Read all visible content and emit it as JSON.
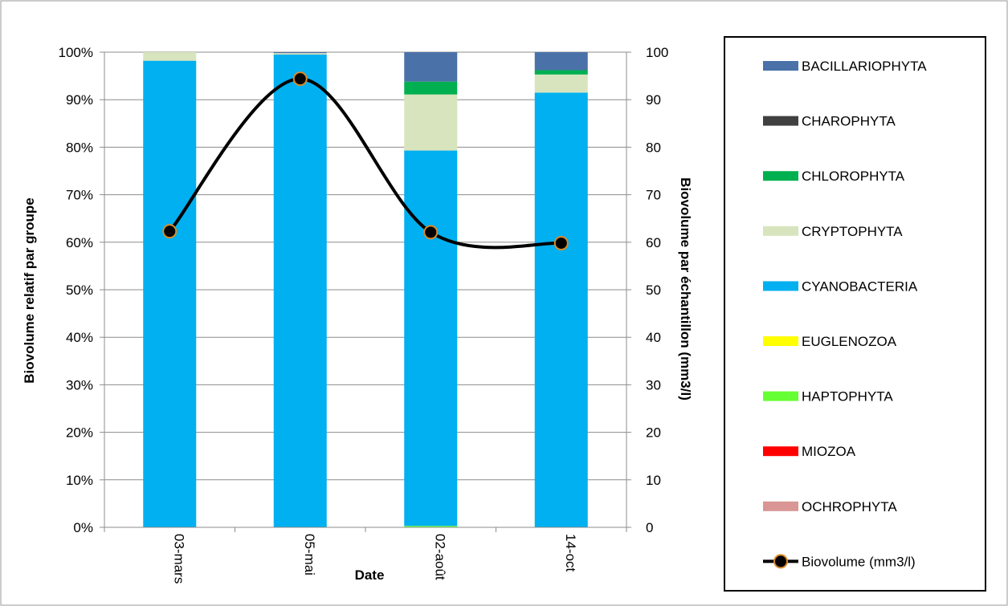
{
  "chart_data": {
    "type": "bar",
    "stacked": true,
    "categories": [
      "03-mars",
      "05-mai",
      "02-août",
      "14-oct"
    ],
    "xlabel": "Date",
    "ylabel": "Biovolume relatif par groupe",
    "y2label": "Biovolume par échantillon (mm3/l)",
    "ylim": [
      0,
      100
    ],
    "y2lim": [
      0,
      100
    ],
    "yticks": [
      "0%",
      "10%",
      "20%",
      "30%",
      "40%",
      "50%",
      "60%",
      "70%",
      "80%",
      "90%",
      "100%"
    ],
    "y2ticks": [
      "0",
      "10",
      "20",
      "30",
      "40",
      "50",
      "60",
      "70",
      "80",
      "90",
      "100"
    ],
    "grid": true,
    "legend_position": "right",
    "series": [
      {
        "name": "OCHROPHYTA",
        "color": "#d99694",
        "values": [
          0,
          0,
          0,
          0
        ]
      },
      {
        "name": "MIOZOA",
        "color": "#ff0000",
        "values": [
          0,
          0,
          0,
          0
        ]
      },
      {
        "name": "HAPTOPHYTA",
        "color": "#66ff33",
        "values": [
          0,
          0,
          0.3,
          0
        ]
      },
      {
        "name": "EUGLENOZOA",
        "color": "#ffff00",
        "values": [
          0,
          0,
          0,
          0
        ]
      },
      {
        "name": "CYANOBACTERIA",
        "color": "#00b0f0",
        "values": [
          98.2,
          99.5,
          79.0,
          91.5
        ]
      },
      {
        "name": "CRYPTOPHYTA",
        "color": "#d7e4bd",
        "values": [
          1.8,
          0.3,
          11.8,
          3.8
        ]
      },
      {
        "name": "CHLOROPHYTA",
        "color": "#00b050",
        "values": [
          0,
          0,
          2.7,
          0.9
        ]
      },
      {
        "name": "CHAROPHYTA",
        "color": "#404040",
        "values": [
          0,
          0,
          0,
          0
        ]
      },
      {
        "name": "BACILLARIOPHYTA",
        "color": "#4a72a8",
        "values": [
          0,
          0.2,
          6.2,
          3.8
        ]
      }
    ],
    "line": {
      "name": "Biovolume (mm3/l)",
      "color": "#000000",
      "marker_color": "#d98a2b",
      "values": [
        62.3,
        94.4,
        62.1,
        59.8
      ]
    },
    "legend_order": [
      "BACILLARIOPHYTA",
      "CHAROPHYTA",
      "CHLOROPHYTA",
      "CRYPTOPHYTA",
      "CYANOBACTERIA",
      "EUGLENOZOA",
      "HAPTOPHYTA",
      "MIOZOA",
      "OCHROPHYTA",
      "Biovolume (mm3/l)"
    ]
  }
}
